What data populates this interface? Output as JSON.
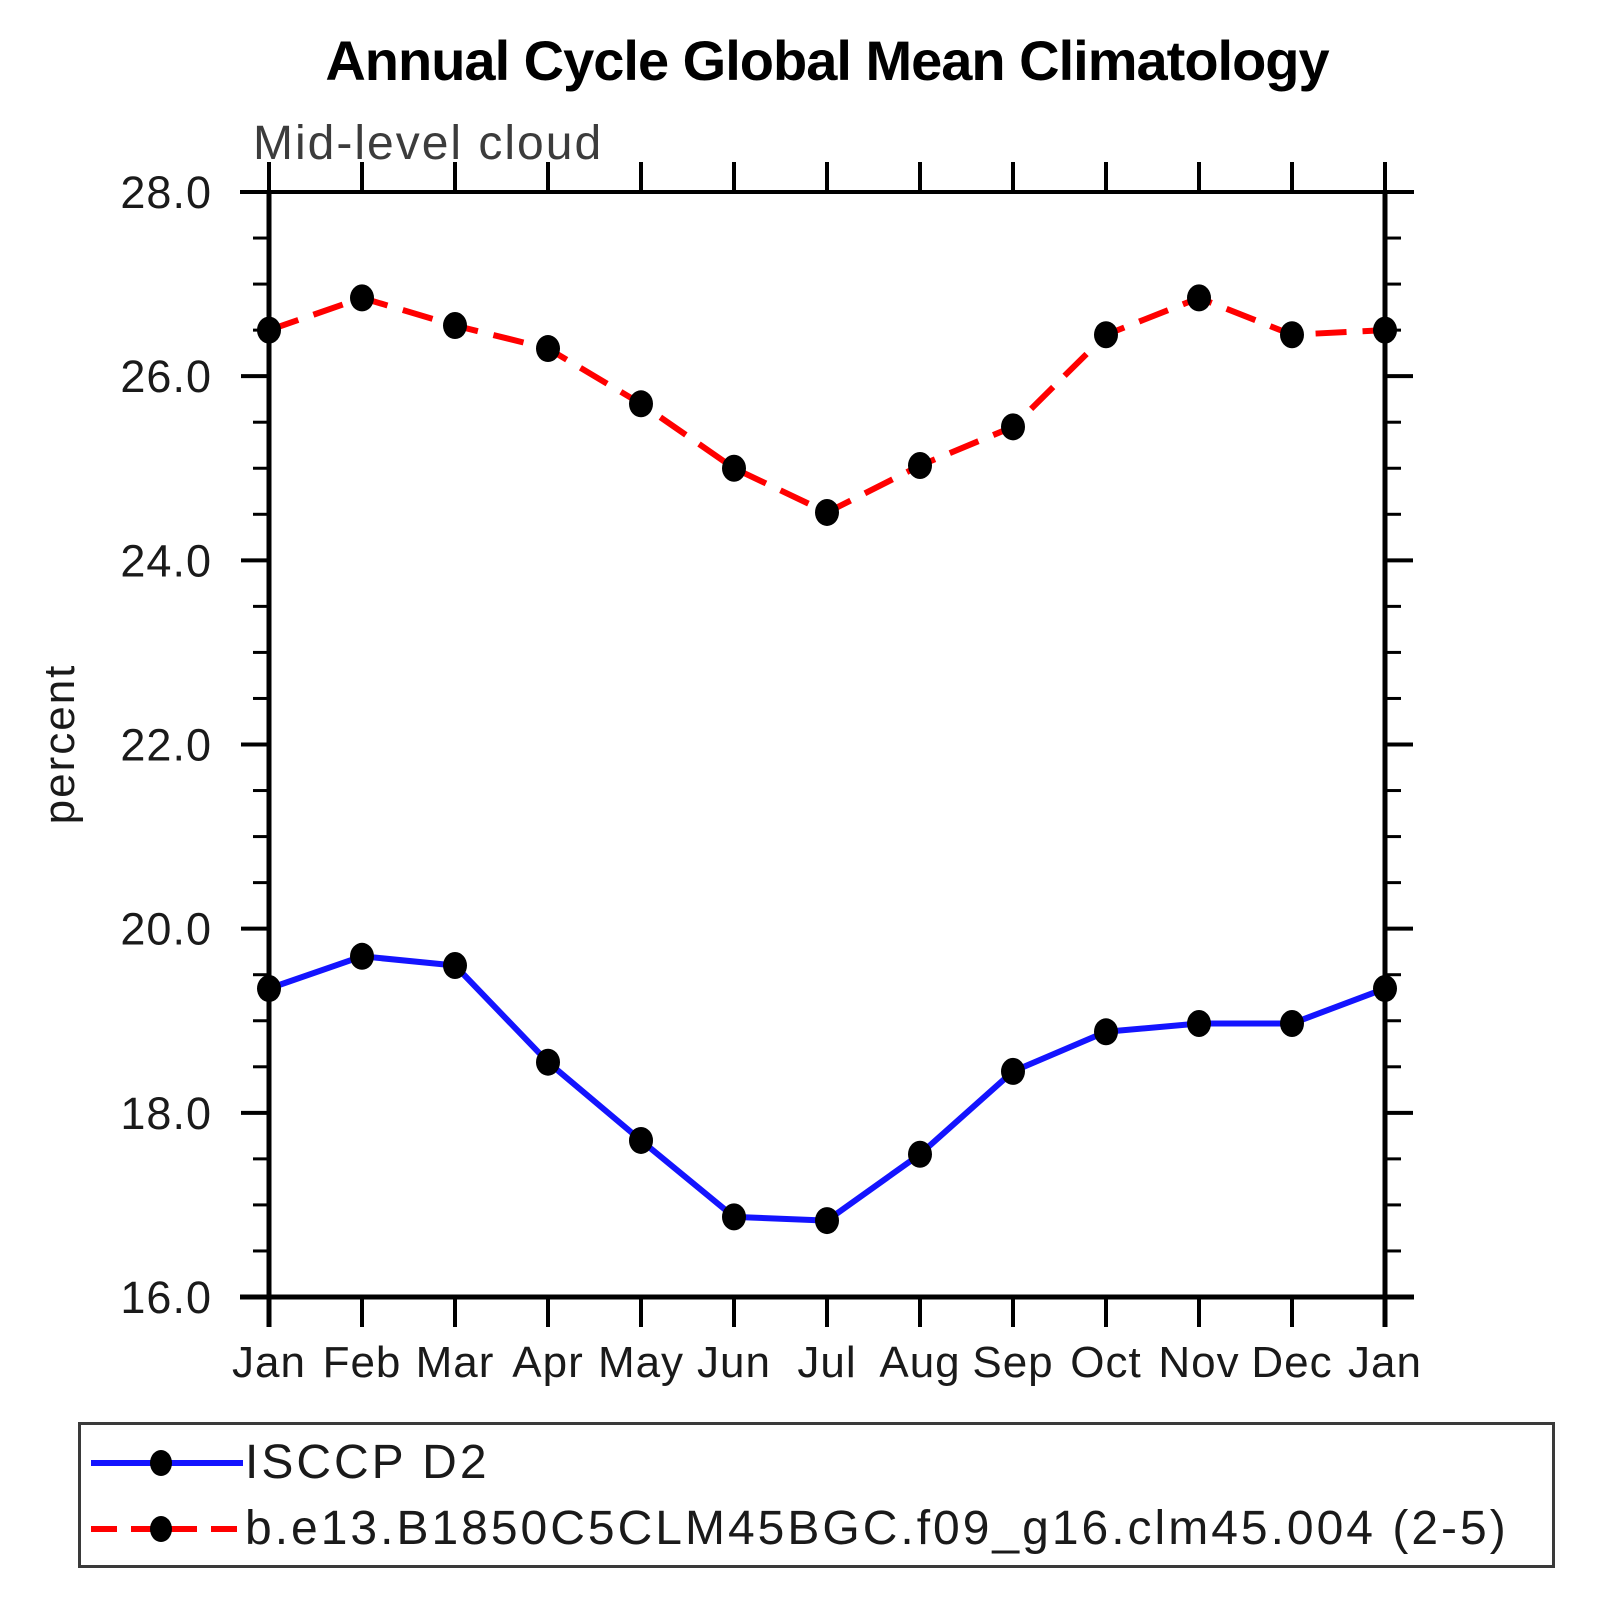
{
  "chart_data": {
    "type": "line",
    "title": "Annual Cycle Global Mean Climatology",
    "subtitle": "Mid-level cloud",
    "xlabel": "",
    "ylabel": "percent",
    "ylim": [
      16.0,
      28.0
    ],
    "y_major_step": 2.0,
    "y_minor_step": 0.5,
    "y_tick_labels": [
      "16.0",
      "18.0",
      "20.0",
      "22.0",
      "24.0",
      "26.0",
      "28.0"
    ],
    "categories": [
      "Jan",
      "Feb",
      "Mar",
      "Apr",
      "May",
      "Jun",
      "Jul",
      "Aug",
      "Sep",
      "Oct",
      "Nov",
      "Dec",
      "Jan"
    ],
    "grid": false,
    "legend_position": "bottom",
    "frame_color": "#000000",
    "marker_color": "#000000",
    "series": [
      {
        "name": "ISCCP D2",
        "color": "#1414ff",
        "style": "solid",
        "marker": "filled-black-dot",
        "values": [
          19.35,
          19.7,
          19.6,
          18.55,
          17.7,
          16.87,
          16.83,
          17.55,
          18.45,
          18.88,
          18.97,
          18.97,
          19.35
        ]
      },
      {
        "name": "b.e13.B1850C5CLM45BGC.f09_g16.clm45.004 (2-5)",
        "color": "#ff0000",
        "style": "dashed",
        "marker": "filled-black-dot",
        "values": [
          26.5,
          26.85,
          26.55,
          26.3,
          25.7,
          25.0,
          24.52,
          25.03,
          25.45,
          26.45,
          26.85,
          26.45,
          26.5
        ]
      }
    ]
  }
}
